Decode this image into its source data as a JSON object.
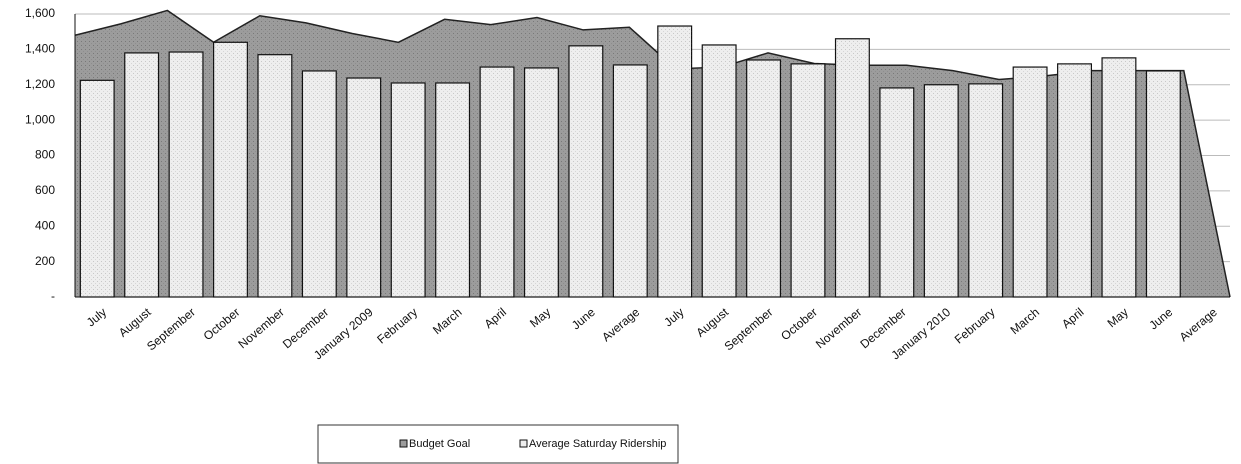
{
  "chart_data": {
    "type": "bar-area",
    "categories": [
      "July",
      "August",
      "September",
      "October",
      "November",
      "December",
      "January 2009",
      "February",
      "March",
      "April",
      "May",
      "June",
      "Average",
      "July",
      "August",
      "September",
      "October",
      "November",
      "December",
      "January 2010",
      "February",
      "March",
      "April",
      "May",
      "June",
      "Average"
    ],
    "series": [
      {
        "name": "Budget Goal",
        "type": "area",
        "color": "#9c9c9c",
        "values": [
          1480,
          1545,
          1620,
          1440,
          1590,
          1550,
          1490,
          1440,
          1570,
          1540,
          1580,
          1510,
          1525,
          1290,
          1300,
          1380,
          1320,
          1310,
          1310,
          1280,
          1230,
          1250,
          1280,
          1280,
          1280,
          0
        ]
      },
      {
        "name": "Average Saturday Ridership",
        "type": "bar",
        "color": "#eeeeee",
        "values": [
          1225,
          1380,
          1385,
          1440,
          1370,
          1278,
          1238,
          1210,
          1210,
          1300,
          1295,
          1420,
          1312,
          1532,
          1425,
          1340,
          1318,
          1460,
          1182,
          1200,
          1205,
          1300,
          1318,
          1352,
          1278,
          null
        ]
      }
    ],
    "ylim": [
      0,
      1600
    ],
    "yticks": [
      {
        "value": 0,
        "label": "-"
      },
      200,
      400,
      600,
      800,
      {
        "value": 1000,
        "label": "1,000"
      },
      {
        "value": 1200,
        "label": "1,200"
      },
      {
        "value": 1400,
        "label": "1,400"
      },
      {
        "value": 1600,
        "label": "1,600"
      }
    ],
    "grid": true,
    "legend": "bottom"
  }
}
